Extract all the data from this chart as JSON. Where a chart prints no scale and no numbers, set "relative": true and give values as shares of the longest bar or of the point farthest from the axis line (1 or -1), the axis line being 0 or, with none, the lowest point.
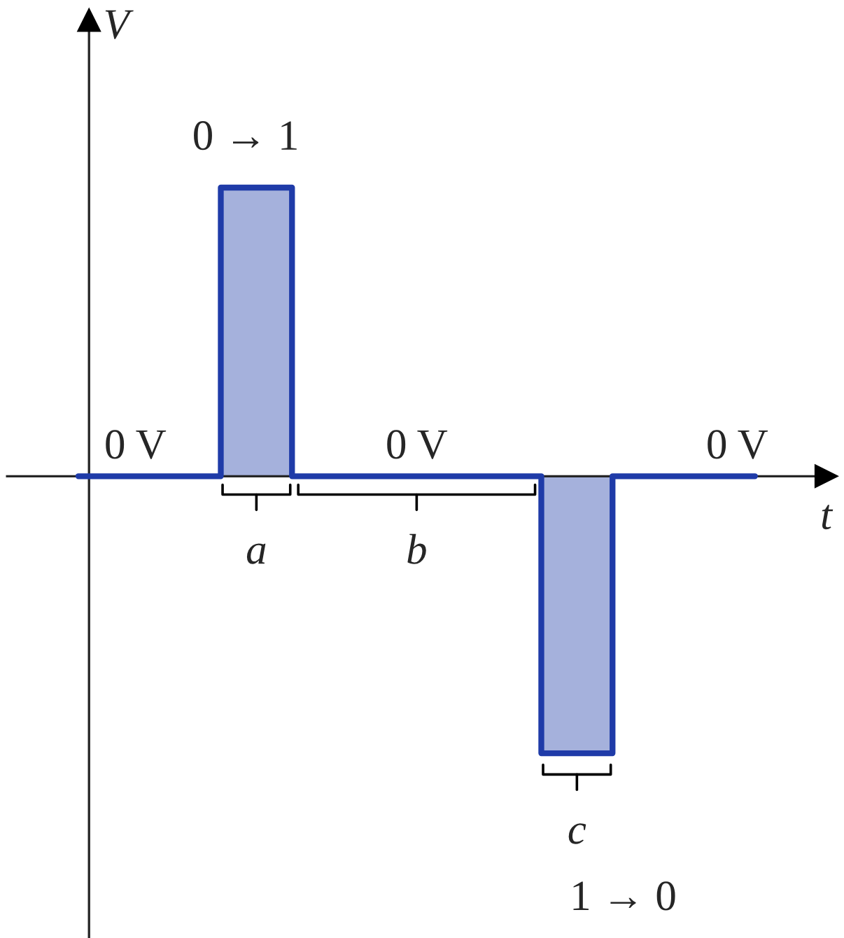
{
  "chart_data": {
    "type": "area",
    "relative": true,
    "xlabel": "t",
    "ylabel": "V",
    "categories": [
      null,
      null,
      null,
      null,
      null,
      null,
      null,
      null,
      null,
      null,
      null,
      null,
      null,
      null,
      null,
      null,
      null,
      null,
      null,
      null
    ],
    "series": [
      {
        "color": "#1f3ba8",
        "values": [
          0,
          0,
          0,
          0,
          1,
          1,
          0,
          0,
          0,
          0,
          0,
          0,
          0,
          -0.96,
          -0.96,
          0,
          0,
          0,
          0,
          0
        ]
      }
    ],
    "annotations": [
      "0 V",
      "0 V",
      "0 V",
      "0 → 1",
      "1 → 0",
      "a",
      "b",
      "c"
    ]
  }
}
